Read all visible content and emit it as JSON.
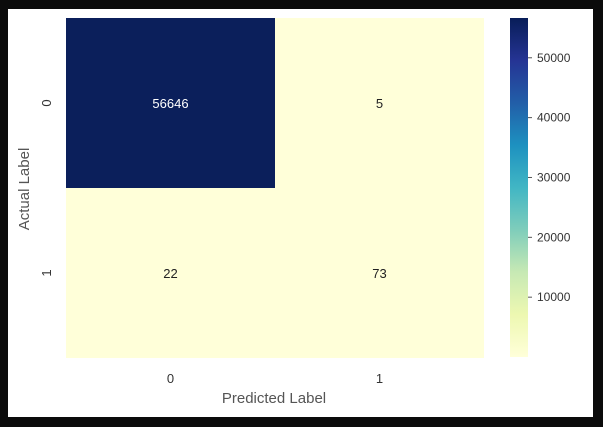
{
  "chart_data": {
    "type": "heatmap",
    "x_categories": [
      "0",
      "1"
    ],
    "y_categories": [
      "0",
      "1"
    ],
    "values": [
      [
        56646,
        5
      ],
      [
        22,
        73
      ]
    ],
    "xlabel": "Predicted Label",
    "ylabel": "Actual Label",
    "colorbar": {
      "colormap": "YlGnBu",
      "min": 5,
      "max": 56646,
      "ticks": [
        "10000",
        "20000",
        "30000",
        "40000",
        "50000"
      ]
    },
    "colors": {
      "high": "#0b1f5b",
      "low": "#ffffd9",
      "high_text": "#ffffff",
      "low_text": "#222222"
    }
  }
}
